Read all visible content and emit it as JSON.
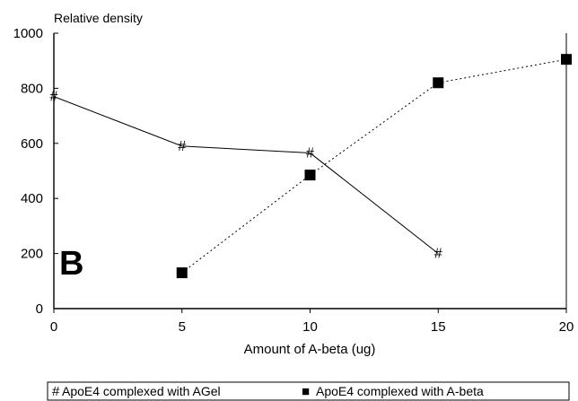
{
  "chart_data": {
    "type": "line",
    "panel_label": "B",
    "ylabel": "Relative density",
    "xlabel": "Amount of A-beta (ug)",
    "xlim": [
      0,
      20
    ],
    "ylim": [
      0,
      1000
    ],
    "x_ticks": [
      "0",
      "5",
      "10",
      "15",
      "20"
    ],
    "y_ticks": [
      "0",
      "200",
      "400",
      "600",
      "800",
      "1000"
    ],
    "grid": false,
    "legend_position": "bottom",
    "series": [
      {
        "name": "ApoE4 complexed with AGel",
        "marker": "#",
        "line_style": "solid",
        "x": [
          0,
          5,
          10,
          15
        ],
        "y": [
          770,
          590,
          565,
          200
        ]
      },
      {
        "name": "ApoE4 complexed with A-beta",
        "marker": "filled-square",
        "line_style": "dotted",
        "x": [
          5,
          10,
          15,
          20
        ],
        "y": [
          130,
          485,
          820,
          905
        ]
      }
    ],
    "legend": {
      "agel_symbol": "#",
      "agel_label": "ApoE4 complexed with AGel",
      "abeta_symbol": "■",
      "abeta_label": "ApoE4 complexed with A-beta"
    }
  }
}
